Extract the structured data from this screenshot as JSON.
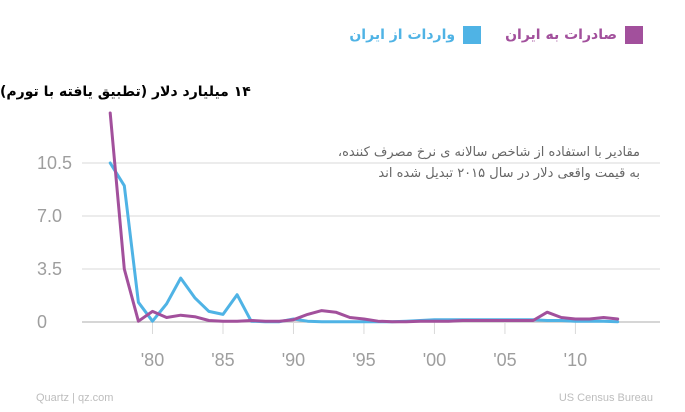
{
  "colors": {
    "exports": "#a2509c",
    "imports": "#4fb3e5",
    "grid": "#d9d9d9",
    "axis": "#bdbdbd",
    "text_muted": "#9e9e9e"
  },
  "legend": [
    {
      "label": "صادرات به ایران",
      "color": "#a2509c"
    },
    {
      "label": "واردات از ایران",
      "color": "#4fb3e5"
    }
  ],
  "ylabel_top": "۱۴ میلیارد دلار (تطبیق یافته با تورم)",
  "annotation": "مقادیر با استفاده از شاخص سالانه ی نرخ مصرف کننده، به قیمت واقعی دلار در سال ۲۰۱۵ تبدیل شده اند",
  "footer": {
    "left": "Quartz | qz.com",
    "right": "US Census Bureau"
  },
  "chart_data": {
    "type": "line",
    "xlim": [
      1975,
      2016
    ],
    "ylim": [
      0,
      14
    ],
    "yticks": [
      0,
      3.5,
      7,
      10.5
    ],
    "ytick_labels": [
      "0",
      "3.5",
      "7.0",
      "10.5"
    ],
    "xticks": [
      1980,
      1985,
      1990,
      1995,
      2000,
      2005,
      2010
    ],
    "xtick_labels": [
      "'80",
      "'85",
      "'90",
      "'95",
      "'00",
      "'05",
      "'10"
    ],
    "grid": true,
    "series": [
      {
        "name": "صادرات به ایران",
        "color": "#a2509c",
        "x": [
          1977,
          1978,
          1979,
          1980,
          1981,
          1982,
          1983,
          1984,
          1985,
          1986,
          1987,
          1988,
          1989,
          1990,
          1991,
          1992,
          1993,
          1994,
          1995,
          1996,
          1997,
          1998,
          1999,
          2000,
          2001,
          2002,
          2003,
          2004,
          2005,
          2006,
          2007,
          2008,
          2009,
          2010,
          2011,
          2012,
          2013
        ],
        "y": [
          13.8,
          3.5,
          0.05,
          0.7,
          0.3,
          0.45,
          0.35,
          0.1,
          0.05,
          0.05,
          0.1,
          0.05,
          0.05,
          0.15,
          0.5,
          0.75,
          0.65,
          0.3,
          0.2,
          0.05,
          0.02,
          0.02,
          0.05,
          0.05,
          0.05,
          0.1,
          0.1,
          0.1,
          0.1,
          0.1,
          0.1,
          0.65,
          0.3,
          0.2,
          0.2,
          0.3,
          0.2
        ]
      },
      {
        "name": "واردات از ایران",
        "color": "#4fb3e5",
        "x": [
          1977,
          1978,
          1979,
          1980,
          1981,
          1982,
          1983,
          1984,
          1985,
          1986,
          1987,
          1988,
          1989,
          1990,
          1991,
          1992,
          1993,
          1994,
          1995,
          1996,
          1997,
          1998,
          1999,
          2000,
          2001,
          2002,
          2003,
          2004,
          2005,
          2006,
          2007,
          2008,
          2009,
          2010,
          2011,
          2012,
          2013
        ],
        "y": [
          10.5,
          9.0,
          1.3,
          0.05,
          1.2,
          2.9,
          1.6,
          0.7,
          0.5,
          1.8,
          0.05,
          0.02,
          0.02,
          0.2,
          0.05,
          0.02,
          0.02,
          0.02,
          0.02,
          0.02,
          0.02,
          0.05,
          0.1,
          0.15,
          0.15,
          0.15,
          0.15,
          0.15,
          0.15,
          0.15,
          0.15,
          0.1,
          0.1,
          0.05,
          0.05,
          0.05,
          0.02
        ]
      }
    ]
  }
}
